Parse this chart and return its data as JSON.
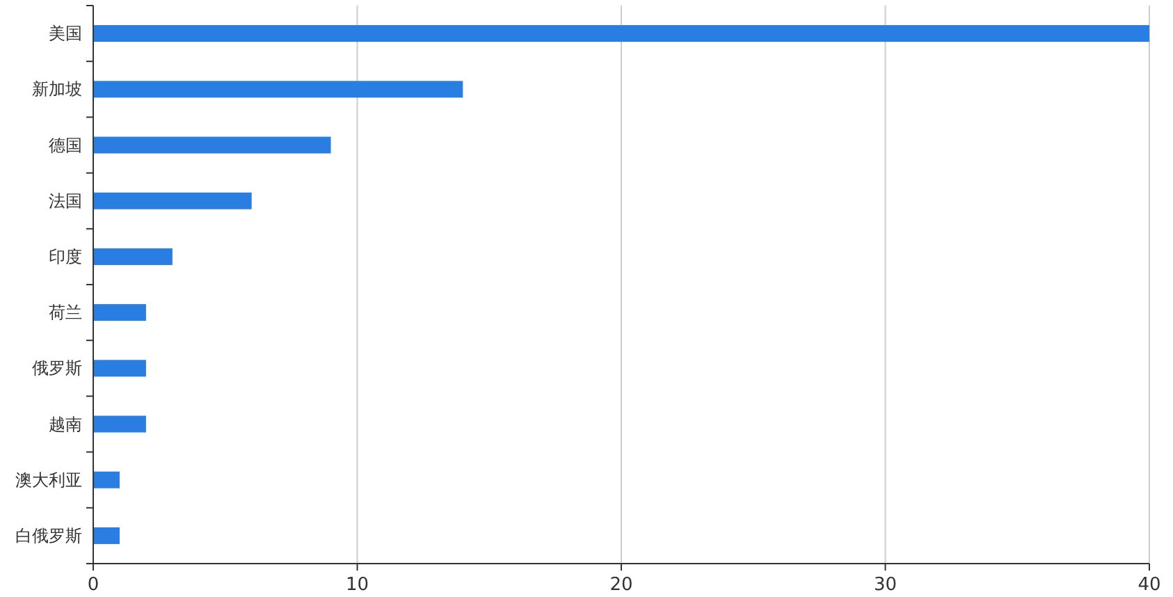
{
  "chart_data": {
    "type": "bar",
    "orientation": "horizontal",
    "categories": [
      "美国",
      "新加坡",
      "德国",
      "法国",
      "印度",
      "荷兰",
      "俄罗斯",
      "越南",
      "澳大利亚",
      "白俄罗斯"
    ],
    "values": [
      40,
      14,
      9,
      6,
      3,
      2,
      2,
      2,
      1,
      1
    ],
    "color": "#2a7de1",
    "xlim": [
      0,
      40
    ],
    "xticks": [
      0,
      10,
      20,
      30,
      40
    ],
    "grid": "x"
  }
}
